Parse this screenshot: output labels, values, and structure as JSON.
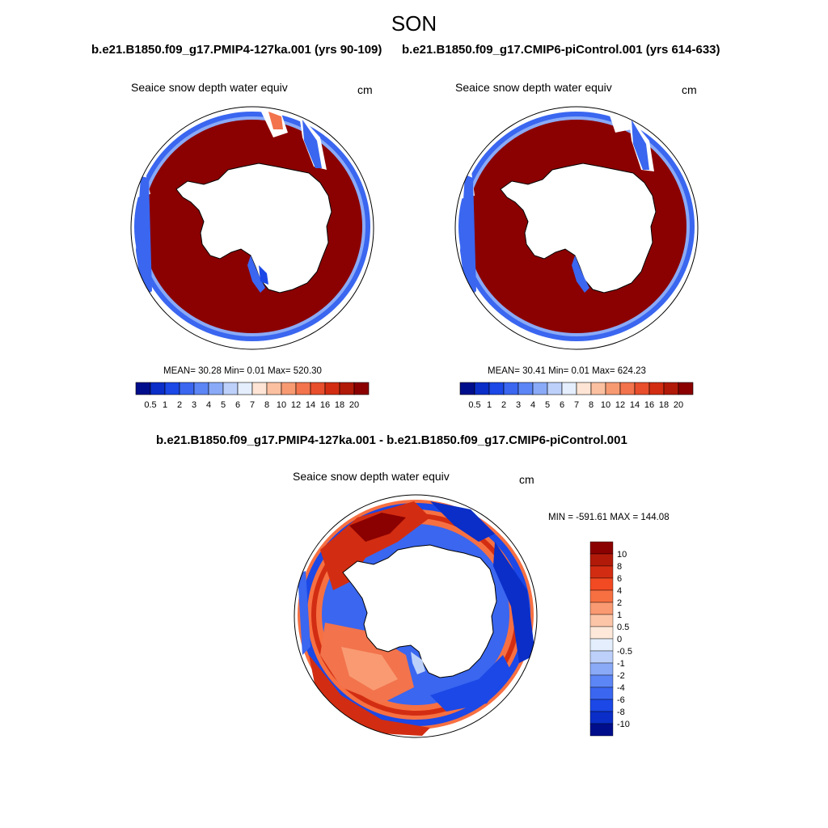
{
  "season": "SON",
  "panels": {
    "left": {
      "case": "b.e21.B1850.f09_g17.PMIP4-127ka.001 (yrs 90-109)",
      "variable": "Seaice snow depth water equiv",
      "units": "cm",
      "stats": "MEAN=  30.28  Min=   0.01  Max= 520.30"
    },
    "right": {
      "case": "b.e21.B1850.f09_g17.CMIP6-piControl.001 (yrs 614-633)",
      "variable": "Seaice snow depth water equiv",
      "units": "cm",
      "stats": "MEAN=  30.41  Min=   0.01  Max= 624.23"
    },
    "diff": {
      "case": "b.e21.B1850.f09_g17.PMIP4-127ka.001 - b.e21.B1850.f09_g17.CMIP6-piControl.001",
      "variable": "Seaice snow depth water equiv",
      "units": "cm",
      "stats": "MIN = -591.61 MAX = 144.08"
    }
  },
  "colorbar_abs": {
    "labels": [
      "0.5",
      "1",
      "2",
      "3",
      "4",
      "5",
      "6",
      "7",
      "8",
      "10",
      "12",
      "14",
      "16",
      "18",
      "20"
    ],
    "colors": [
      "#000e8c",
      "#0a2ec7",
      "#1b48e6",
      "#3a66f0",
      "#5c86f5",
      "#8aaaf7",
      "#bcd0fa",
      "#e4eefc",
      "#fde4d4",
      "#fbc0a0",
      "#f79a72",
      "#f2734c",
      "#e84e2c",
      "#d22d12",
      "#b11a08",
      "#8b0000"
    ]
  },
  "colorbar_diff": {
    "labels": [
      "10",
      "8",
      "6",
      "4",
      "2",
      "1",
      "0.5",
      "0",
      "-0.5",
      "-1",
      "-2",
      "-4",
      "-6",
      "-8",
      "-10"
    ],
    "colors": [
      "#8b0000",
      "#b11a08",
      "#d22d12",
      "#f24a22",
      "#f77042",
      "#f99a72",
      "#fcc5a8",
      "#fde8da",
      "#e4eefc",
      "#bcd0fa",
      "#8aaaf7",
      "#5c86f5",
      "#3a66f0",
      "#1b48e6",
      "#0a2ec7",
      "#000e8c"
    ]
  }
}
